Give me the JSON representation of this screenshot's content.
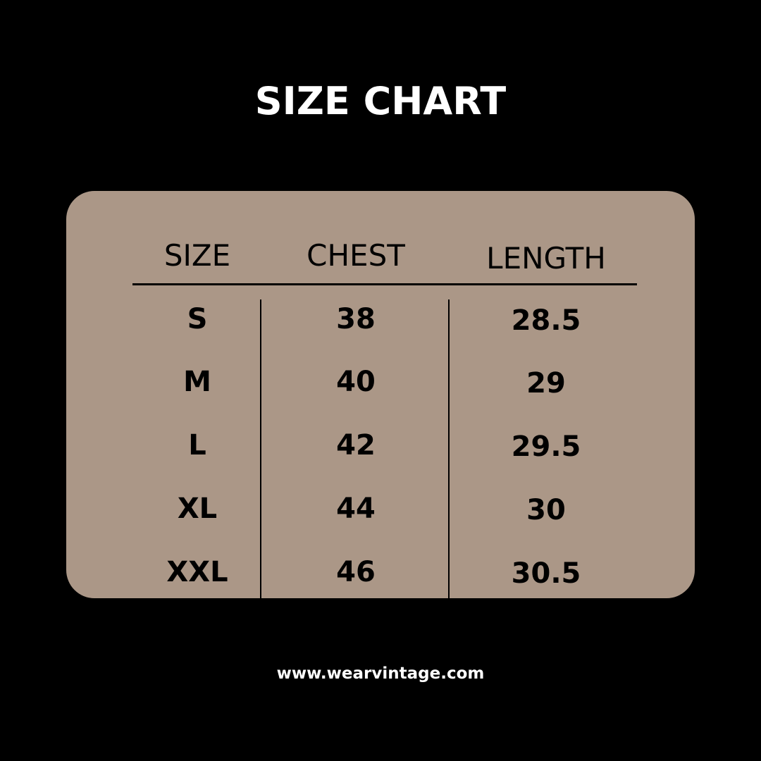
{
  "title": "SIZE CHART",
  "table": {
    "headers": [
      "SIZE",
      "CHEST",
      "LENGTH"
    ],
    "rows": [
      [
        "S",
        "38",
        "28.5"
      ],
      [
        "M",
        "40",
        "29"
      ],
      [
        "L",
        "42",
        "29.5"
      ],
      [
        "XL",
        "44",
        "30"
      ],
      [
        "XXL",
        "46",
        "30.5"
      ]
    ]
  },
  "footer": {
    "url": "www.wearvintage.com"
  },
  "colors": {
    "background": "#000000",
    "card": "#AB9787",
    "text": "#000000",
    "title": "#FFFFFF"
  }
}
